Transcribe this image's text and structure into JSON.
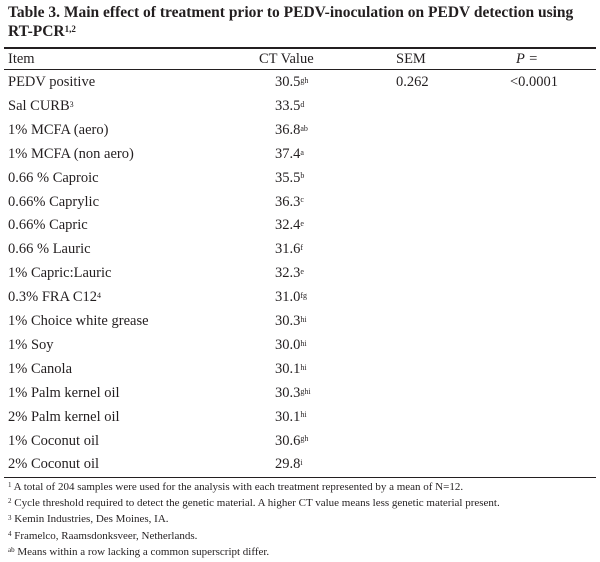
{
  "table": {
    "caption": {
      "line1": "Table 3. Main effect of treatment prior to PEDV-inoculation on PEDV detection using",
      "line2": "RT-PCR",
      "sup": "1,2"
    },
    "headers": {
      "item": "Item",
      "ct": "CT Value",
      "sem": "SEM",
      "p": "P ="
    },
    "rows": [
      {
        "item": "PEDV positive",
        "ct": "30.5",
        "sup": "gh",
        "sem": "0.262",
        "p": "<0.0001"
      },
      {
        "item": "Sal CURB",
        "item_sup": "3",
        "ct": "33.5",
        "sup": "d"
      },
      {
        "item": "1% MCFA (aero)",
        "ct": "36.8",
        "sup": "ab"
      },
      {
        "item": "1% MCFA (non aero)",
        "ct": "37.4",
        "sup": "a"
      },
      {
        "item": "0.66 % Caproic",
        "ct": "35.5",
        "sup": "b"
      },
      {
        "item": "0.66% Caprylic",
        "ct": "36.3",
        "sup": "c"
      },
      {
        "item": "0.66% Capric",
        "ct": "32.4",
        "sup": "e"
      },
      {
        "item": "0.66 % Lauric",
        "ct": "31.6",
        "sup": "f"
      },
      {
        "item": "1% Capric:Lauric",
        "ct": "32.3",
        "sup": "e"
      },
      {
        "item": "0.3% FRA C12",
        "item_sup": "4",
        "ct": "31.0",
        "sup": "fg"
      },
      {
        "item": "1% Choice white grease",
        "ct": "30.3",
        "sup": "hi"
      },
      {
        "item": "1% Soy",
        "ct": "30.0",
        "sup": "hi"
      },
      {
        "item": "1% Canola",
        "ct": "30.1",
        "sup": "hi"
      },
      {
        "item": "1% Palm kernel oil",
        "ct": "30.3",
        "sup": "ghi"
      },
      {
        "item": "2% Palm kernel oil",
        "ct": "30.1",
        "sup": "hi"
      },
      {
        "item": "1% Coconut oil",
        "ct": "30.6",
        "sup": "gh"
      },
      {
        "item": "2% Coconut oil",
        "ct": "29.8",
        "sup": "i"
      }
    ],
    "footnotes": [
      {
        "mark": "1",
        "text": "A total of 204 samples were used for the analysis with each treatment represented by a mean of N=12."
      },
      {
        "mark": "2",
        "text": "Cycle threshold required to detect the genetic material. A higher CT value means less genetic material present."
      },
      {
        "mark": "3",
        "text": "Kemin Industries, Des Moines, IA."
      },
      {
        "mark": "4",
        "text": "Framelco, Raamsdonksveer, Netherlands."
      },
      {
        "mark": "ab",
        "text": "Means within a row lacking a common superscript differ."
      }
    ]
  }
}
